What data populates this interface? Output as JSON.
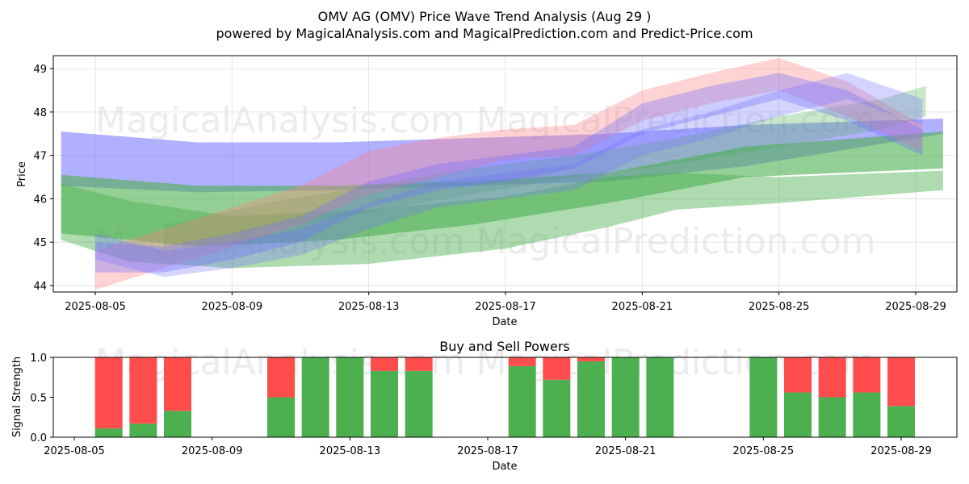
{
  "title_line1": "OMV AG (OMV) Price Wave Trend Analysis (Aug 29 )",
  "title_line2": "powered by MagicalAnalysis.com and MagicalPrediction.com and Predict-Price.com",
  "watermarks": [
    "MagicalAnalysis.com",
    "MagicalPrediction.com"
  ],
  "chart_data": [
    {
      "type": "area",
      "xlabel": "Date",
      "ylabel": "Price",
      "ylim": [
        43.85,
        49.3
      ],
      "xlim": [
        "2025-08-04",
        "2025-08-30"
      ],
      "x_ticks": [
        "2025-08-05",
        "2025-08-09",
        "2025-08-13",
        "2025-08-17",
        "2025-08-21",
        "2025-08-25",
        "2025-08-29"
      ],
      "y_ticks": [
        44,
        45,
        46,
        47,
        48,
        49
      ],
      "grid": true,
      "colors": {
        "blue": "#6f6fff",
        "green": "#4caf50",
        "red": "#ff8080"
      },
      "bands": [
        {
          "color": "blue",
          "opacity": 0.55,
          "x": [
            "2025-08-04",
            "2025-08-08",
            "2025-08-12",
            "2025-08-16",
            "2025-08-20",
            "2025-08-24",
            "2025-08-29.8"
          ],
          "upper": [
            47.55,
            47.3,
            47.3,
            47.4,
            47.5,
            47.7,
            47.85
          ],
          "lower": [
            46.3,
            46.15,
            46.2,
            46.3,
            46.4,
            46.75,
            47.5
          ]
        },
        {
          "color": "green",
          "opacity": 0.6,
          "x": [
            "2025-08-04",
            "2025-08-08",
            "2025-08-12",
            "2025-08-16",
            "2025-08-20",
            "2025-08-24",
            "2025-08-29.8"
          ],
          "upper": [
            46.55,
            46.3,
            46.3,
            46.4,
            46.6,
            47.2,
            47.55
          ],
          "lower": [
            45.2,
            44.9,
            45.05,
            45.4,
            45.9,
            46.5,
            46.7
          ]
        },
        {
          "color": "green",
          "opacity": 0.45,
          "x": [
            "2025-08-04",
            "2025-08-06",
            "2025-08-09",
            "2025-08-13",
            "2025-08-17",
            "2025-08-20",
            "2025-08-22",
            "2025-08-25",
            "2025-08-29.8"
          ],
          "upper": [
            46.35,
            45.95,
            45.6,
            45.75,
            46.05,
            46.5,
            46.6,
            46.5,
            46.65
          ],
          "lower": [
            45.05,
            44.55,
            44.4,
            44.5,
            44.85,
            45.35,
            45.75,
            45.9,
            46.2
          ]
        },
        {
          "color": "green",
          "opacity": 0.3,
          "x": [
            "2025-08-07",
            "2025-08-10",
            "2025-08-13",
            "2025-08-16",
            "2025-08-19",
            "2025-08-22",
            "2025-08-25",
            "2025-08-28",
            "2025-08-29.3"
          ],
          "upper": [
            45.4,
            45.9,
            46.3,
            46.7,
            47.0,
            47.4,
            47.9,
            48.3,
            48.6
          ],
          "lower": [
            44.9,
            45.3,
            45.7,
            46.1,
            46.5,
            46.8,
            47.2,
            47.6,
            47.9
          ]
        },
        {
          "color": "red",
          "opacity": 0.35,
          "x": [
            "2025-08-05",
            "2025-08-07",
            "2025-08-09",
            "2025-08-11",
            "2025-08-13",
            "2025-08-15",
            "2025-08-17",
            "2025-08-19",
            "2025-08-21",
            "2025-08-23",
            "2025-08-25",
            "2025-08-27",
            "2025-08-29.2"
          ],
          "upper": [
            44.8,
            45.3,
            45.8,
            46.3,
            47.1,
            47.4,
            47.6,
            47.7,
            48.5,
            48.9,
            49.25,
            48.7,
            47.7
          ],
          "lower": [
            43.9,
            44.4,
            44.9,
            45.4,
            46.1,
            46.5,
            46.9,
            47.0,
            47.8,
            48.2,
            48.5,
            47.9,
            47.1
          ]
        },
        {
          "color": "blue",
          "opacity": 0.35,
          "x": [
            "2025-08-05",
            "2025-08-07",
            "2025-08-09",
            "2025-08-11",
            "2025-08-13",
            "2025-08-15",
            "2025-08-17",
            "2025-08-19",
            "2025-08-21",
            "2025-08-23",
            "2025-08-25",
            "2025-08-27",
            "2025-08-29.2"
          ],
          "upper": [
            45.0,
            44.9,
            45.2,
            45.6,
            46.4,
            46.8,
            47.0,
            47.2,
            48.2,
            48.6,
            48.9,
            48.5,
            47.6
          ],
          "lower": [
            44.3,
            44.3,
            44.6,
            45.0,
            45.8,
            46.2,
            46.4,
            46.7,
            47.5,
            47.9,
            48.3,
            47.8,
            47.0
          ]
        },
        {
          "color": "blue",
          "opacity": 0.3,
          "x": [
            "2025-08-05",
            "2025-08-07",
            "2025-08-09",
            "2025-08-11",
            "2025-08-13",
            "2025-08-15",
            "2025-08-17",
            "2025-08-19",
            "2025-08-21",
            "2025-08-23",
            "2025-08-25",
            "2025-08-27",
            "2025-08-29.2"
          ],
          "upper": [
            45.2,
            44.8,
            45.0,
            45.3,
            45.9,
            46.4,
            46.6,
            46.8,
            47.6,
            48.0,
            48.5,
            48.9,
            48.3
          ],
          "lower": [
            44.6,
            44.2,
            44.4,
            44.7,
            45.3,
            45.8,
            46.0,
            46.2,
            47.0,
            47.4,
            47.9,
            48.3,
            47.7
          ]
        }
      ]
    },
    {
      "type": "bar",
      "title": "Buy and Sell Powers",
      "xlabel": "Date",
      "ylabel": "Signal Strength",
      "ylim": [
        0,
        1.0
      ],
      "y_ticks": [
        0.0,
        0.5,
        1.0
      ],
      "x_ticks": [
        "2025-08-05",
        "2025-08-09",
        "2025-08-13",
        "2025-08-17",
        "2025-08-21",
        "2025-08-25",
        "2025-08-29"
      ],
      "colors": {
        "buy": "#4caf50",
        "sell": "#ff4d4d"
      },
      "categories": [
        "2025-08-06",
        "2025-08-07",
        "2025-08-08",
        "2025-08-11",
        "2025-08-12",
        "2025-08-13",
        "2025-08-14",
        "2025-08-15",
        "2025-08-18",
        "2025-08-19",
        "2025-08-20",
        "2025-08-21",
        "2025-08-22",
        "2025-08-25",
        "2025-08-26",
        "2025-08-27",
        "2025-08-28",
        "2025-08-29"
      ],
      "series": [
        {
          "values": [
            0.11,
            0.17,
            0.33,
            0.5,
            1.0,
            1.0,
            0.83,
            0.83,
            0.89,
            0.72,
            0.95,
            1.0,
            1.0,
            1.0,
            0.56,
            0.5,
            0.56,
            0.39
          ]
        },
        {
          "values": [
            0.89,
            0.83,
            0.67,
            0.5,
            0.0,
            0.0,
            0.17,
            0.17,
            0.11,
            0.28,
            0.05,
            0.0,
            0.0,
            0.0,
            0.44,
            0.5,
            0.44,
            0.61
          ]
        }
      ]
    }
  ]
}
